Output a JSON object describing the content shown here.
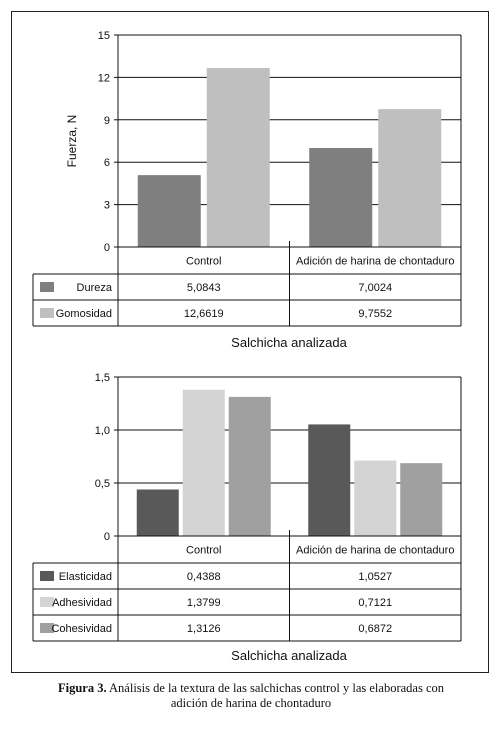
{
  "figure_caption": {
    "label": "Figura 3.",
    "line1": "Análisis de la textura de las salchichas control y las elaboradas con",
    "line2": "adición de harina de chontaduro"
  },
  "chart_data": [
    {
      "type": "bar",
      "ylabel": "Fuerza, N",
      "xlabel": "Salchicha analizada",
      "ylim": [
        0,
        15
      ],
      "yticks": [
        "0",
        "3",
        "6",
        "9",
        "12",
        "15"
      ],
      "ytick_values": [
        0,
        3,
        6,
        9,
        12,
        15
      ],
      "grid": true,
      "categories": [
        "Control",
        "Adición de harina de chontaduro"
      ],
      "series": [
        {
          "name": "Dureza",
          "values": [
            5.0843,
            7.0024
          ],
          "labels": [
            "5,0843",
            "7,0024"
          ],
          "color": "#7f7f7f"
        },
        {
          "name": "Gomosidad",
          "values": [
            12.6619,
            9.7552
          ],
          "labels": [
            "12,6619",
            "9,7552"
          ],
          "color": "#bfbfbf"
        }
      ]
    },
    {
      "type": "bar",
      "ylabel": "",
      "xlabel": "Salchicha analizada",
      "ylim": [
        0,
        1.5
      ],
      "yticks": [
        "0",
        "0,5",
        "1,0",
        "1,5"
      ],
      "ytick_values": [
        0,
        0.5,
        1.0,
        1.5
      ],
      "grid": true,
      "categories": [
        "Control",
        "Adición de harina de chontaduro"
      ],
      "series": [
        {
          "name": "Elasticidad",
          "values": [
            0.4388,
            1.0527
          ],
          "labels": [
            "0,4388",
            "1,0527"
          ],
          "color": "#595959"
        },
        {
          "name": "Adhesividad",
          "values": [
            1.3799,
            0.7121
          ],
          "labels": [
            "1,3799",
            "0,7121"
          ],
          "color": "#d4d4d4"
        },
        {
          "name": "Cohesividad",
          "values": [
            1.3126,
            0.6872
          ],
          "labels": [
            "1,3126",
            "0,6872"
          ],
          "color": "#a0a0a0"
        }
      ]
    }
  ]
}
